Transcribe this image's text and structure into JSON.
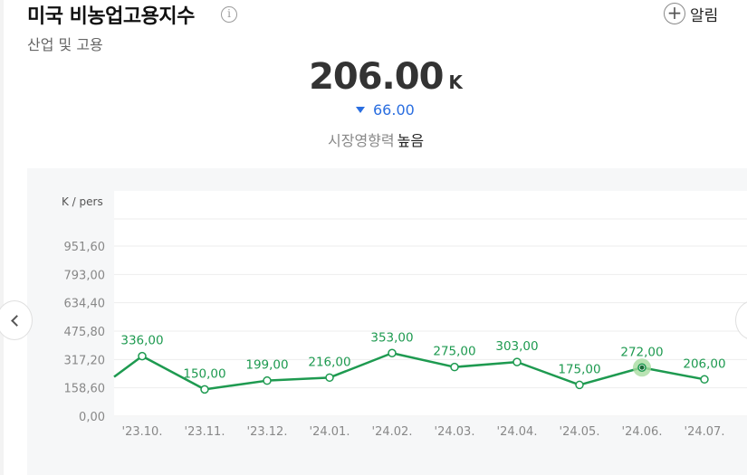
{
  "header": {
    "title": "미국 비농업고용지수",
    "info_icon": "info-icon",
    "subtitle": "산업 및 고용",
    "alarm_label": "알림",
    "alarm_icon": "plus-circle-icon"
  },
  "summary": {
    "value": "206.00",
    "unit": "K",
    "change": "66.00",
    "change_direction": "down",
    "change_color": "#2a6ee0",
    "impact_label": "시장영향력",
    "impact_value": "높음"
  },
  "navigation": {
    "prev_icon": "chevron-left-icon",
    "next_icon": "chevron-right-icon"
  },
  "chart_data": {
    "type": "line",
    "unit_label": "K / pers",
    "categories": [
      "'23.10.",
      "'23.11.",
      "'23.12.",
      "'24.01.",
      "'24.02.",
      "'24.03.",
      "'24.04.",
      "'24.05.",
      "'24.06.",
      "'24.07."
    ],
    "values": [
      336,
      150,
      199,
      216,
      353,
      275,
      303,
      175,
      272,
      206
    ],
    "data_labels": [
      "336,00",
      "150,00",
      "199,00",
      "216,00",
      "353,00",
      "275,00",
      "303,00",
      "175,00",
      "272,00",
      "206,00"
    ],
    "y_ticks": [
      0,
      158.6,
      317.2,
      475.8,
      634.4,
      793,
      951.6
    ],
    "y_tick_labels": [
      "0,00",
      "158,60",
      "317,20",
      "475,80",
      "634,40",
      "793,00",
      "951,60"
    ],
    "ylim": [
      0,
      951.6
    ],
    "highlight_index": 8,
    "line_color": "#1e9a50",
    "highlight_color": "#a8dca0",
    "grid": true
  }
}
